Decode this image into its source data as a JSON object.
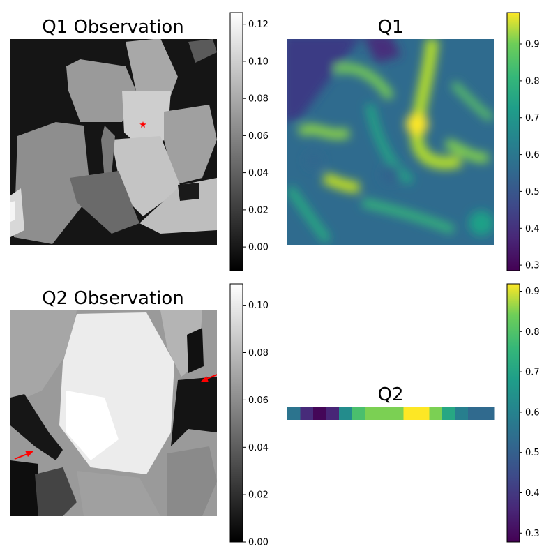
{
  "chart_data": [
    {
      "type": "heatmap",
      "title": "Q1 Observation",
      "colormap": "gray",
      "colorbar": {
        "range": [
          -0.012,
          0.127
        ],
        "ticks": [
          "0.00",
          "0.02",
          "0.04",
          "0.06",
          "0.08",
          "0.10",
          "0.12"
        ]
      },
      "annotations": [
        {
          "kind": "star",
          "color": "#ff0000"
        }
      ]
    },
    {
      "type": "heatmap",
      "title": "Q1",
      "colormap": "viridis",
      "colorbar": {
        "range": [
          0.28,
          0.98
        ],
        "ticks": [
          "0.3",
          "0.4",
          "0.5",
          "0.6",
          "0.7",
          "0.8",
          "0.9"
        ]
      }
    },
    {
      "type": "heatmap",
      "title": "Q2 Observation",
      "colormap": "gray",
      "colorbar": {
        "range": [
          0.0,
          0.109
        ],
        "ticks": [
          "0.00",
          "0.02",
          "0.04",
          "0.06",
          "0.08",
          "0.10"
        ]
      },
      "annotations": [
        {
          "kind": "arrow",
          "color": "#ff0000"
        },
        {
          "kind": "arrow",
          "color": "#ff0000"
        }
      ]
    },
    {
      "type": "heatmap",
      "title": "Q2",
      "colormap": "viridis",
      "colorbar": {
        "range": [
          0.27,
          0.91
        ],
        "ticks": [
          "0.3",
          "0.4",
          "0.5",
          "0.6",
          "0.7",
          "0.8",
          "0.9"
        ]
      },
      "values": [
        0.55,
        0.36,
        0.28,
        0.35,
        0.62,
        0.78,
        0.84,
        0.84,
        0.84,
        0.91,
        0.91,
        0.84,
        0.7,
        0.58,
        0.52,
        0.52
      ]
    }
  ]
}
